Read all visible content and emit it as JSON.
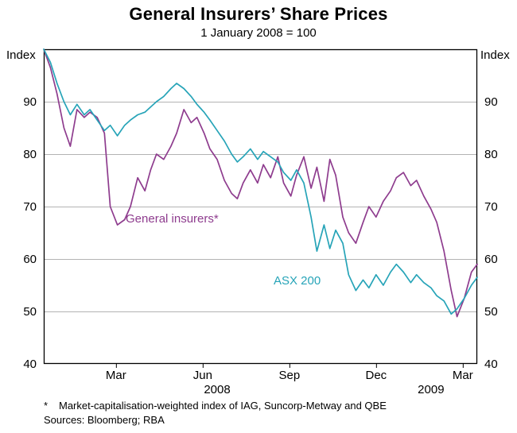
{
  "page": {
    "title": "General Insurers’ Share Prices",
    "subtitle": "1 January 2008 = 100",
    "y_axis_unit_left": "Index",
    "y_axis_unit_right": "Index",
    "footnote_marker": "*",
    "footnote_text": "Market-capitalisation-weighted index of IAG, Suncorp-Metway and QBE",
    "sources": "Sources: Bloomberg; RBA"
  },
  "chart_data": {
    "type": "line",
    "title": "General Insurers’ Share Prices",
    "subtitle": "1 January 2008 = 100",
    "ylabel": "Index",
    "ylim": [
      40,
      100
    ],
    "yticks": [
      40,
      50,
      60,
      70,
      80,
      90
    ],
    "grid": true,
    "legend": "in-plot colored labels",
    "x_unit": "months since 1 January 2008",
    "xlim": [
      0,
      15
    ],
    "xticks": [
      {
        "t": 2.5,
        "label": "Mar"
      },
      {
        "t": 5.5,
        "label": "Jun"
      },
      {
        "t": 8.5,
        "label": "Sep"
      },
      {
        "t": 11.5,
        "label": "Dec"
      },
      {
        "t": 14.5,
        "label": "Mar"
      }
    ],
    "year_labels": [
      {
        "t": 6.0,
        "label": "2008"
      },
      {
        "t": 13.4,
        "label": "2009"
      }
    ],
    "x": [
      0,
      0.23,
      0.46,
      0.7,
      0.92,
      1.15,
      1.4,
      1.6,
      1.85,
      2.1,
      2.3,
      2.55,
      2.8,
      3.0,
      3.25,
      3.5,
      3.7,
      3.9,
      4.15,
      4.4,
      4.6,
      4.85,
      5.1,
      5.3,
      5.55,
      5.75,
      6.0,
      6.25,
      6.5,
      6.7,
      6.9,
      7.15,
      7.4,
      7.6,
      7.85,
      8.1,
      8.3,
      8.55,
      8.75,
      9.0,
      9.25,
      9.45,
      9.7,
      9.9,
      10.1,
      10.35,
      10.55,
      10.8,
      11.05,
      11.25,
      11.5,
      11.75,
      12.0,
      12.2,
      12.45,
      12.7,
      12.9,
      13.15,
      13.4,
      13.6,
      13.85,
      14.1,
      14.3,
      14.55,
      14.8,
      15.0
    ],
    "series": [
      {
        "name": "General insurers*",
        "color": "#8e3c8e",
        "values": [
          100,
          96.5,
          91.5,
          85,
          81.5,
          88.5,
          87,
          88,
          87,
          84,
          70,
          66.5,
          67.5,
          70,
          75.5,
          73,
          77,
          80,
          79,
          81.5,
          84,
          88.5,
          86,
          87,
          84,
          81,
          79,
          75,
          72.5,
          71.5,
          74.5,
          77,
          74.5,
          78,
          75.5,
          79.5,
          74.5,
          72,
          76,
          79.5,
          73.5,
          77.5,
          71,
          79,
          76,
          68,
          65,
          63,
          67,
          70,
          68,
          71,
          73,
          75.5,
          76.5,
          74,
          75,
          72,
          69.5,
          67,
          61.5,
          54,
          49,
          52.5,
          57.5,
          59
        ]
      },
      {
        "name": "ASX 200",
        "color": "#27a4b8",
        "values": [
          100,
          97.5,
          93.5,
          90,
          87.5,
          89.5,
          87.5,
          88.5,
          86.5,
          84.5,
          85.5,
          83.5,
          85.5,
          86.5,
          87.5,
          88,
          89,
          90,
          91,
          92.5,
          93.5,
          92.5,
          91,
          89.5,
          88,
          86.5,
          84.5,
          82.5,
          80,
          78.5,
          79.5,
          81,
          79,
          80.5,
          79.5,
          78.5,
          76.5,
          75,
          77,
          74.5,
          68,
          61.5,
          66.5,
          62,
          65.5,
          63,
          57,
          54,
          56,
          54.5,
          57,
          55,
          57.5,
          59,
          57.5,
          55.5,
          57,
          55.5,
          54.5,
          53,
          52,
          49.5,
          50.5,
          52.5,
          55,
          56.5
        ]
      }
    ]
  }
}
